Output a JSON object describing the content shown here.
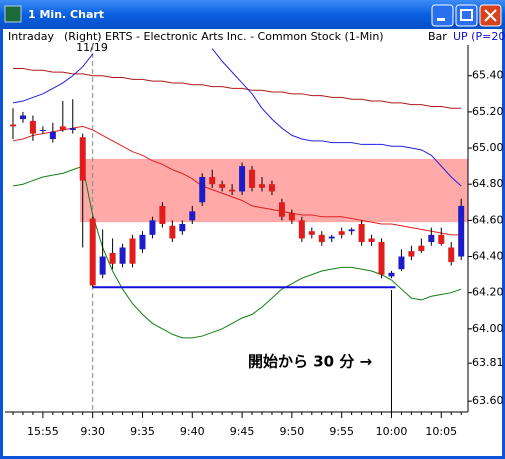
{
  "window": {
    "title": "1 Min. Chart"
  },
  "header": {
    "mode": "Intraday",
    "symbol": "(Right) ERTS - Electronic Arts Inc. - Common Stock  (1-Min)",
    "style": "Bar",
    "indicator": "UP (P=20",
    "date": "11/19"
  },
  "chart_data": {
    "type": "candlestick",
    "categories": [
      null,
      null,
      null,
      "15:55",
      null,
      null,
      null,
      null,
      "9:30",
      null,
      null,
      null,
      null,
      "9:35",
      null,
      null,
      null,
      null,
      "9:40",
      null,
      null,
      null,
      null,
      "9:45",
      null,
      null,
      null,
      null,
      "9:50",
      null,
      null,
      null,
      null,
      "9:55",
      null,
      null,
      null,
      null,
      "10:00",
      null,
      null,
      null,
      null,
      "10:05",
      null,
      null
    ],
    "open": [
      65.13,
      65.16,
      65.15,
      65.1,
      65.05,
      65.12,
      65.1,
      65.06,
      64.61,
      64.3,
      64.42,
      64.36,
      64.5,
      64.44,
      64.52,
      64.68,
      64.57,
      64.54,
      64.6,
      64.7,
      64.84,
      64.8,
      64.77,
      64.76,
      64.88,
      64.8,
      64.8,
      64.7,
      64.64,
      64.6,
      64.54,
      64.52,
      64.5,
      64.54,
      64.54,
      64.58,
      64.5,
      64.48,
      64.29,
      64.33,
      64.43,
      64.46,
      64.48,
      64.52,
      64.45,
      64.4
    ],
    "high": [
      65.22,
      65.2,
      65.18,
      65.12,
      65.14,
      65.26,
      65.27,
      65.08,
      64.62,
      64.55,
      64.5,
      64.47,
      64.52,
      64.54,
      64.62,
      64.7,
      64.6,
      64.6,
      64.68,
      64.86,
      64.88,
      64.82,
      64.8,
      64.92,
      64.9,
      64.84,
      64.82,
      64.72,
      64.66,
      64.62,
      64.56,
      64.54,
      64.52,
      64.56,
      64.56,
      64.6,
      64.52,
      64.5,
      64.32,
      64.44,
      64.46,
      64.5,
      64.56,
      64.56,
      64.48,
      64.72
    ],
    "low": [
      65.05,
      65.14,
      65.04,
      65.08,
      65.03,
      65.09,
      65.08,
      64.45,
      64.23,
      64.28,
      64.33,
      64.34,
      64.34,
      64.42,
      64.5,
      64.56,
      64.48,
      64.52,
      64.58,
      64.68,
      64.78,
      64.76,
      64.74,
      64.74,
      64.76,
      64.76,
      64.74,
      64.6,
      64.58,
      64.48,
      64.5,
      64.46,
      64.48,
      64.5,
      64.52,
      64.46,
      64.46,
      64.28,
      64.28,
      64.32,
      64.38,
      64.42,
      64.46,
      64.46,
      64.35,
      64.38
    ],
    "close": [
      65.12,
      65.18,
      65.08,
      65.1,
      65.09,
      65.1,
      65.11,
      64.82,
      64.24,
      64.4,
      64.36,
      64.45,
      64.36,
      64.52,
      64.6,
      64.58,
      64.5,
      64.58,
      64.65,
      64.84,
      64.8,
      64.78,
      64.76,
      64.9,
      64.78,
      64.78,
      64.76,
      64.62,
      64.6,
      64.5,
      64.52,
      64.48,
      64.51,
      64.52,
      64.55,
      64.48,
      64.48,
      64.3,
      64.31,
      64.4,
      64.4,
      64.43,
      64.52,
      64.47,
      64.37,
      64.68
    ],
    "up_color": "#1c1cc8",
    "down_color": "#e01c1c",
    "lines": [
      {
        "color": "#b01818",
        "values": [
          65.44,
          65.44,
          65.43,
          65.43,
          65.42,
          65.42,
          65.41,
          65.41,
          65.4,
          65.4,
          65.39,
          65.39,
          65.38,
          65.38,
          65.37,
          65.37,
          65.36,
          65.36,
          65.35,
          65.35,
          65.34,
          65.34,
          65.33,
          65.33,
          65.32,
          65.32,
          65.31,
          65.31,
          65.3,
          65.3,
          65.29,
          65.29,
          65.28,
          65.28,
          65.27,
          65.27,
          65.26,
          65.26,
          65.25,
          65.25,
          65.24,
          65.24,
          65.23,
          65.23,
          65.22,
          65.22
        ]
      },
      {
        "color": "#e02020",
        "values": [
          65.04,
          65.05,
          65.07,
          65.08,
          65.09,
          65.1,
          65.11,
          65.12,
          65.1,
          65.07,
          65.04,
          65.01,
          64.98,
          64.96,
          64.93,
          64.91,
          64.88,
          64.86,
          64.83,
          64.79,
          64.77,
          64.75,
          64.73,
          64.71,
          64.68,
          64.67,
          64.66,
          64.65,
          64.64,
          64.63,
          64.63,
          64.62,
          64.62,
          64.62,
          64.61,
          64.6,
          64.59,
          64.58,
          64.58,
          64.57,
          64.56,
          64.55,
          64.54,
          64.53,
          64.52,
          64.52
        ]
      },
      {
        "color": "#2020e0",
        "values": [
          65.25,
          65.26,
          65.28,
          65.3,
          65.33,
          65.36,
          65.4,
          65.45,
          65.52,
          null,
          null,
          null,
          null,
          null,
          null,
          null,
          null,
          null,
          null,
          null,
          65.55,
          65.48,
          65.42,
          65.36,
          65.3,
          65.22,
          65.16,
          65.11,
          65.07,
          65.05,
          65.04,
          65.04,
          65.03,
          65.03,
          65.03,
          65.02,
          65.02,
          65.02,
          65.01,
          65.01,
          65.0,
          64.99,
          64.96,
          64.9,
          64.84,
          64.79
        ]
      },
      {
        "color": "#108010",
        "values": [
          64.79,
          64.8,
          64.82,
          64.84,
          64.85,
          64.86,
          64.88,
          64.9,
          64.63,
          64.45,
          64.32,
          64.22,
          64.14,
          64.08,
          64.03,
          64.0,
          63.97,
          63.95,
          63.95,
          63.96,
          63.98,
          64.0,
          64.03,
          64.06,
          64.08,
          64.12,
          64.17,
          64.22,
          64.25,
          64.28,
          64.3,
          64.32,
          64.33,
          64.34,
          64.34,
          64.33,
          64.32,
          64.3,
          64.27,
          64.22,
          64.17,
          64.16,
          64.18,
          64.19,
          64.2,
          64.22
        ]
      }
    ],
    "zone": [
      64.59,
      64.94
    ],
    "zone_color": "#ff9a9a",
    "support": 64.23,
    "support_color": "#1010e0",
    "annotation": "開始から 30 分 →",
    "ylim": [
      63.54,
      65.57
    ],
    "yticks": [
      {
        "value": 65.4,
        "label": "65.40"
      },
      {
        "value": 65.2,
        "label": "65.20"
      },
      {
        "value": 65.0,
        "label": "65.00"
      },
      {
        "value": 64.8,
        "label": "64.80"
      },
      {
        "value": 64.6,
        "label": "64.60"
      },
      {
        "value": 64.4,
        "label": "64.40"
      },
      {
        "value": 64.2,
        "label": "64.20"
      },
      {
        "value": 64.0,
        "label": "64.00"
      },
      63.81,
      {
        "value": 63.6,
        "label": "63.60"
      }
    ]
  }
}
